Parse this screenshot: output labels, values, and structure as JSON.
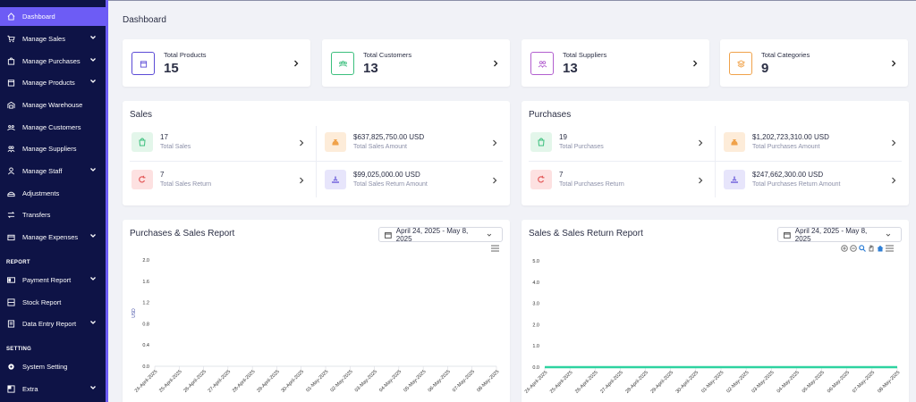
{
  "sidebar": {
    "items": [
      {
        "label": "Dashboard",
        "icon": "home-icon",
        "active": true
      },
      {
        "label": "Manage Sales",
        "icon": "cart-icon",
        "chevron": true
      },
      {
        "label": "Manage Purchases",
        "icon": "bag-icon",
        "chevron": true
      },
      {
        "label": "Manage Products",
        "icon": "box-icon",
        "chevron": true
      },
      {
        "label": "Manage Warehouse",
        "icon": "warehouse-icon"
      },
      {
        "label": "Manage Customers",
        "icon": "customers-icon"
      },
      {
        "label": "Manage Suppliers",
        "icon": "suppliers-icon"
      },
      {
        "label": "Manage Staff",
        "icon": "user-icon",
        "chevron": true
      },
      {
        "label": "Adjustments",
        "icon": "adjust-icon"
      },
      {
        "label": "Transfers",
        "icon": "transfer-icon"
      },
      {
        "label": "Manage Expenses",
        "icon": "wallet-icon",
        "chevron": true
      }
    ],
    "report_heading": "REPORT",
    "report_items": [
      {
        "label": "Payment Report",
        "icon": "payment-icon",
        "chevron": true
      },
      {
        "label": "Stock Report",
        "icon": "stock-icon"
      },
      {
        "label": "Data Entry Report",
        "icon": "data-icon",
        "chevron": true
      }
    ],
    "setting_heading": "SETTING",
    "setting_items": [
      {
        "label": "System Setting",
        "icon": "gear-icon"
      },
      {
        "label": "Extra",
        "icon": "extra-icon",
        "chevron": true
      }
    ]
  },
  "page_title": "Dashboard",
  "stats": [
    {
      "label": "Total Products",
      "value": "15",
      "color": "#5b4bd6"
    },
    {
      "label": "Total Customers",
      "value": "13",
      "color": "#3bbf7d"
    },
    {
      "label": "Total Suppliers",
      "value": "13",
      "color": "#b25fcf"
    },
    {
      "label": "Total Categories",
      "value": "9",
      "color": "#f0a24a"
    }
  ],
  "sales": {
    "title": "Sales",
    "cells": [
      {
        "value": "17",
        "label": "Total Sales",
        "bg": "#e3f6ea",
        "color": "#3bbf7d"
      },
      {
        "value": "$637,825,750.00 USD",
        "label": "Total Sales Amount",
        "bg": "#fdecd9",
        "color": "#f0a24a"
      },
      {
        "value": "7",
        "label": "Total Sales Return",
        "bg": "#fde1e1",
        "color": "#e35a5a"
      },
      {
        "value": "$99,025,000.00 USD",
        "label": "Total Sales Return Amount",
        "bg": "#e7e5fb",
        "color": "#5b4bd6"
      }
    ]
  },
  "purchases": {
    "title": "Purchases",
    "cells": [
      {
        "value": "19",
        "label": "Total Purchases",
        "bg": "#e3f6ea",
        "color": "#3bbf7d"
      },
      {
        "value": "$1,202,723,310.00 USD",
        "label": "Total Purchases Amount",
        "bg": "#fdecd9",
        "color": "#f0a24a"
      },
      {
        "value": "7",
        "label": "Total Purchases Return",
        "bg": "#fde1e1",
        "color": "#e35a5a"
      },
      {
        "value": "$247,662,300.00 USD",
        "label": "Total Purchases Return Amount",
        "bg": "#e7e5fb",
        "color": "#5b4bd6"
      }
    ]
  },
  "report1": {
    "title": "Purchases & Sales Report",
    "date_range": "April 24, 2025 - May 8, 2025"
  },
  "report2": {
    "title": "Sales & Sales Return Report",
    "date_range": "April 24, 2025 - May 8, 2025"
  },
  "chart_data": [
    {
      "type": "line",
      "title": "Purchases & Sales Report",
      "ylabel": "USD",
      "yticks": [
        "2.0",
        "1.6",
        "1.2",
        "0.8",
        "0.4",
        "0.0"
      ],
      "ylim": [
        0,
        2
      ],
      "x": [
        "24-April-2025",
        "25-April-2025",
        "26-April-2025",
        "27-April-2025",
        "28-April-2025",
        "29-April-2025",
        "30-April-2025",
        "01-May-2025",
        "02-May-2025",
        "03-May-2025",
        "04-May-2025",
        "05-May-2025",
        "06-May-2025",
        "07-May-2025",
        "08-May-2025"
      ],
      "series": []
    },
    {
      "type": "line",
      "title": "Sales & Sales Return Report",
      "yticks": [
        "5.0",
        "4.0",
        "3.0",
        "2.0",
        "1.0",
        "0.0"
      ],
      "ylim": [
        0,
        5
      ],
      "x": [
        "24-April-2025",
        "25-April-2025",
        "26-April-2025",
        "27-April-2025",
        "28-April-2025",
        "29-April-2025",
        "30-April-2025",
        "01-May-2025",
        "02-May-2025",
        "03-May-2025",
        "04-May-2025",
        "05-May-2025",
        "06-May-2025",
        "07-May-2025",
        "08-May-2025"
      ],
      "series": [
        {
          "color": "#2ed3a0",
          "values": [
            0,
            0,
            0,
            0,
            0,
            0,
            0,
            0,
            0,
            0,
            0,
            0,
            0,
            0,
            0
          ]
        }
      ]
    }
  ]
}
